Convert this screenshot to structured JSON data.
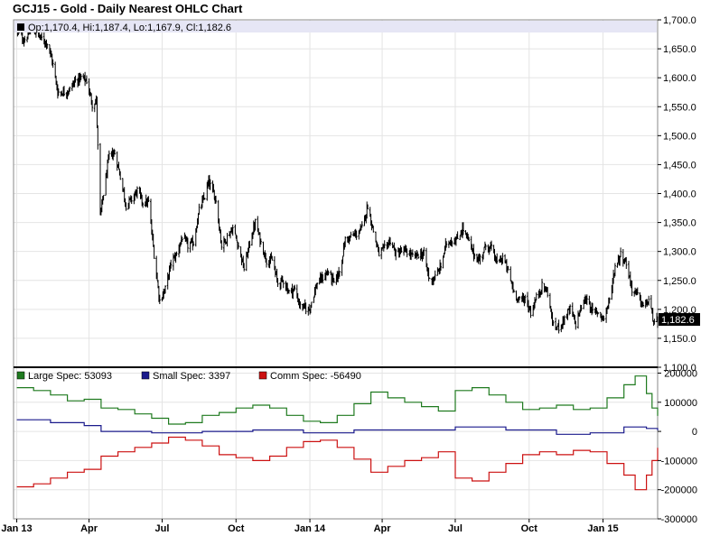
{
  "title": "GCJ15 - Gold - Daily Nearest OHLC Chart",
  "chart_data": [
    {
      "type": "ohlc",
      "ohlc_legend": "Op:1,170.4, Hi:1,187.4, Lo:1,167.9, Cl:1,182.6",
      "last_value_label": "1,182.6",
      "last_value": 1182.6,
      "ylim": [
        1100,
        1700
      ],
      "y_ticks": [
        "1,100.0",
        "1,150.0",
        "1,200.0",
        "1,250.0",
        "1,300.0",
        "1,350.0",
        "1,400.0",
        "1,450.0",
        "1,500.0",
        "1,550.0",
        "1,600.0",
        "1,650.0",
        "1,700.0"
      ],
      "y_tick_values": [
        1100,
        1150,
        1200,
        1250,
        1300,
        1350,
        1400,
        1450,
        1500,
        1550,
        1600,
        1650,
        1700
      ],
      "x_tick_dates": [
        "2013-01-01",
        "2013-04-01",
        "2013-07-01",
        "2013-10-01",
        "2014-01-01",
        "2014-04-01",
        "2014-07-01",
        "2014-10-01",
        "2015-01-01"
      ],
      "x_range": [
        "2012-12-28",
        "2015-03-10"
      ],
      "grid": true,
      "close_series": [
        [
          "2013-01-02",
          1680
        ],
        [
          "2013-01-10",
          1665
        ],
        [
          "2013-01-20",
          1685
        ],
        [
          "2013-01-30",
          1670
        ],
        [
          "2013-02-08",
          1660
        ],
        [
          "2013-02-14",
          1630
        ],
        [
          "2013-02-21",
          1575
        ],
        [
          "2013-03-01",
          1575
        ],
        [
          "2013-03-08",
          1580
        ],
        [
          "2013-03-15",
          1595
        ],
        [
          "2013-03-22",
          1600
        ],
        [
          "2013-03-29",
          1595
        ],
        [
          "2013-04-05",
          1555
        ],
        [
          "2013-04-10",
          1560
        ],
        [
          "2013-04-12",
          1480
        ],
        [
          "2013-04-15",
          1360
        ],
        [
          "2013-04-19",
          1400
        ],
        [
          "2013-04-26",
          1465
        ],
        [
          "2013-05-03",
          1470
        ],
        [
          "2013-05-10",
          1430
        ],
        [
          "2013-05-17",
          1380
        ],
        [
          "2013-05-24",
          1390
        ],
        [
          "2013-05-31",
          1405
        ],
        [
          "2013-06-07",
          1385
        ],
        [
          "2013-06-14",
          1385
        ],
        [
          "2013-06-21",
          1295
        ],
        [
          "2013-06-28",
          1215
        ],
        [
          "2013-07-05",
          1235
        ],
        [
          "2013-07-12",
          1280
        ],
        [
          "2013-07-19",
          1295
        ],
        [
          "2013-07-26",
          1325
        ],
        [
          "2013-08-02",
          1310
        ],
        [
          "2013-08-09",
          1315
        ],
        [
          "2013-08-16",
          1370
        ],
        [
          "2013-08-23",
          1395
        ],
        [
          "2013-08-28",
          1420
        ],
        [
          "2013-09-06",
          1390
        ],
        [
          "2013-09-13",
          1310
        ],
        [
          "2013-09-20",
          1325
        ],
        [
          "2013-09-27",
          1340
        ],
        [
          "2013-10-04",
          1310
        ],
        [
          "2013-10-11",
          1270
        ],
        [
          "2013-10-18",
          1315
        ],
        [
          "2013-10-25",
          1350
        ],
        [
          "2013-11-01",
          1315
        ],
        [
          "2013-11-08",
          1285
        ],
        [
          "2013-11-15",
          1285
        ],
        [
          "2013-11-22",
          1245
        ],
        [
          "2013-11-29",
          1250
        ],
        [
          "2013-12-06",
          1230
        ],
        [
          "2013-12-13",
          1235
        ],
        [
          "2013-12-20",
          1205
        ],
        [
          "2013-12-31",
          1200
        ],
        [
          "2014-01-10",
          1245
        ],
        [
          "2014-01-17",
          1255
        ],
        [
          "2014-01-24",
          1265
        ],
        [
          "2014-01-31",
          1245
        ],
        [
          "2014-02-07",
          1265
        ],
        [
          "2014-02-14",
          1320
        ],
        [
          "2014-02-21",
          1325
        ],
        [
          "2014-02-28",
          1330
        ],
        [
          "2014-03-07",
          1340
        ],
        [
          "2014-03-14",
          1380
        ],
        [
          "2014-03-21",
          1335
        ],
        [
          "2014-03-28",
          1295
        ],
        [
          "2014-04-04",
          1305
        ],
        [
          "2014-04-11",
          1320
        ],
        [
          "2014-04-18",
          1295
        ],
        [
          "2014-04-25",
          1300
        ],
        [
          "2014-05-02",
          1300
        ],
        [
          "2014-05-09",
          1290
        ],
        [
          "2014-05-16",
          1295
        ],
        [
          "2014-05-23",
          1295
        ],
        [
          "2014-05-30",
          1250
        ],
        [
          "2014-06-06",
          1255
        ],
        [
          "2014-06-13",
          1275
        ],
        [
          "2014-06-20",
          1315
        ],
        [
          "2014-06-27",
          1320
        ],
        [
          "2014-07-03",
          1320
        ],
        [
          "2014-07-10",
          1340
        ],
        [
          "2014-07-17",
          1320
        ],
        [
          "2014-07-24",
          1295
        ],
        [
          "2014-07-31",
          1285
        ],
        [
          "2014-08-08",
          1310
        ],
        [
          "2014-08-15",
          1305
        ],
        [
          "2014-08-22",
          1280
        ],
        [
          "2014-08-29",
          1290
        ],
        [
          "2014-09-05",
          1265
        ],
        [
          "2014-09-12",
          1230
        ],
        [
          "2014-09-19",
          1215
        ],
        [
          "2014-09-26",
          1220
        ],
        [
          "2014-10-03",
          1195
        ],
        [
          "2014-10-10",
          1220
        ],
        [
          "2014-10-17",
          1240
        ],
        [
          "2014-10-24",
          1230
        ],
        [
          "2014-10-31",
          1170
        ],
        [
          "2014-11-07",
          1170
        ],
        [
          "2014-11-14",
          1185
        ],
        [
          "2014-11-21",
          1200
        ],
        [
          "2014-11-28",
          1175
        ],
        [
          "2014-12-05",
          1205
        ],
        [
          "2014-12-12",
          1220
        ],
        [
          "2014-12-19",
          1195
        ],
        [
          "2014-12-26",
          1195
        ],
        [
          "2015-01-02",
          1185
        ],
        [
          "2015-01-09",
          1215
        ],
        [
          "2015-01-16",
          1275
        ],
        [
          "2015-01-23",
          1295
        ],
        [
          "2015-01-30",
          1280
        ],
        [
          "2015-02-06",
          1235
        ],
        [
          "2015-02-13",
          1225
        ],
        [
          "2015-02-20",
          1205
        ],
        [
          "2015-02-27",
          1215
        ],
        [
          "2015-03-06",
          1175
        ],
        [
          "2015-03-10",
          1182.6
        ]
      ]
    },
    {
      "type": "line",
      "ylim": [
        -300000,
        220000
      ],
      "y_ticks": [
        "-300000",
        "-200000",
        "-100000",
        "0",
        "100000",
        "200000"
      ],
      "y_tick_values": [
        -300000,
        -200000,
        -100000,
        0,
        100000,
        200000
      ],
      "x_tick_labels": [
        "Jan 13",
        "Apr",
        "Jul",
        "Oct",
        "Jan 14",
        "Apr",
        "Jul",
        "Oct",
        "Jan 15"
      ],
      "x_tick_dates": [
        "2013-01-01",
        "2013-04-01",
        "2013-07-01",
        "2013-10-01",
        "2014-01-01",
        "2014-04-01",
        "2014-07-01",
        "2014-10-01",
        "2015-01-01"
      ],
      "x_range": [
        "2012-12-28",
        "2015-03-10"
      ],
      "grid": true,
      "series": [
        {
          "name": "Large Spec: 53093",
          "color": "#1f7a1f",
          "points": [
            [
              "2013-01-01",
              150000
            ],
            [
              "2013-01-22",
              140000
            ],
            [
              "2013-02-12",
              125000
            ],
            [
              "2013-03-05",
              105000
            ],
            [
              "2013-03-26",
              110000
            ],
            [
              "2013-04-16",
              80000
            ],
            [
              "2013-05-07",
              75000
            ],
            [
              "2013-05-28",
              60000
            ],
            [
              "2013-06-18",
              45000
            ],
            [
              "2013-07-09",
              25000
            ],
            [
              "2013-07-30",
              30000
            ],
            [
              "2013-08-20",
              55000
            ],
            [
              "2013-09-10",
              65000
            ],
            [
              "2013-10-01",
              80000
            ],
            [
              "2013-10-22",
              90000
            ],
            [
              "2013-11-12",
              80000
            ],
            [
              "2013-12-03",
              55000
            ],
            [
              "2013-12-24",
              35000
            ],
            [
              "2014-01-14",
              30000
            ],
            [
              "2014-02-04",
              55000
            ],
            [
              "2014-02-25",
              95000
            ],
            [
              "2014-03-18",
              135000
            ],
            [
              "2014-04-08",
              115000
            ],
            [
              "2014-04-29",
              100000
            ],
            [
              "2014-05-20",
              85000
            ],
            [
              "2014-06-10",
              70000
            ],
            [
              "2014-07-01",
              140000
            ],
            [
              "2014-07-22",
              150000
            ],
            [
              "2014-08-12",
              125000
            ],
            [
              "2014-09-02",
              100000
            ],
            [
              "2014-09-23",
              75000
            ],
            [
              "2014-10-14",
              80000
            ],
            [
              "2014-11-04",
              90000
            ],
            [
              "2014-11-25",
              75000
            ],
            [
              "2014-12-16",
              80000
            ],
            [
              "2015-01-06",
              115000
            ],
            [
              "2015-01-27",
              160000
            ],
            [
              "2015-02-10",
              190000
            ],
            [
              "2015-02-24",
              130000
            ],
            [
              "2015-03-03",
              80000
            ],
            [
              "2015-03-10",
              53093
            ]
          ]
        },
        {
          "name": "Small Spec: 3397",
          "color": "#1a1a8c",
          "points": [
            [
              "2013-01-01",
              40000
            ],
            [
              "2013-02-12",
              30000
            ],
            [
              "2013-03-26",
              20000
            ],
            [
              "2013-04-16",
              0
            ],
            [
              "2013-06-18",
              -5000
            ],
            [
              "2013-08-20",
              0
            ],
            [
              "2013-10-22",
              5000
            ],
            [
              "2013-12-24",
              -5000
            ],
            [
              "2014-02-25",
              5000
            ],
            [
              "2014-04-29",
              5000
            ],
            [
              "2014-07-01",
              15000
            ],
            [
              "2014-09-02",
              5000
            ],
            [
              "2014-11-04",
              -10000
            ],
            [
              "2014-12-16",
              -5000
            ],
            [
              "2015-01-27",
              15000
            ],
            [
              "2015-02-24",
              10000
            ],
            [
              "2015-03-10",
              3397
            ]
          ]
        },
        {
          "name": "Comm Spec: -56490",
          "color": "#cc1111",
          "points": [
            [
              "2013-01-01",
              -190000
            ],
            [
              "2013-01-22",
              -180000
            ],
            [
              "2013-02-12",
              -160000
            ],
            [
              "2013-03-05",
              -140000
            ],
            [
              "2013-03-26",
              -130000
            ],
            [
              "2013-04-16",
              -85000
            ],
            [
              "2013-05-07",
              -70000
            ],
            [
              "2013-05-28",
              -55000
            ],
            [
              "2013-06-18",
              -40000
            ],
            [
              "2013-07-09",
              -20000
            ],
            [
              "2013-07-30",
              -30000
            ],
            [
              "2013-08-20",
              -50000
            ],
            [
              "2013-09-10",
              -80000
            ],
            [
              "2013-10-01",
              -90000
            ],
            [
              "2013-10-22",
              -100000
            ],
            [
              "2013-11-12",
              -85000
            ],
            [
              "2013-12-03",
              -55000
            ],
            [
              "2013-12-24",
              -35000
            ],
            [
              "2014-01-14",
              -30000
            ],
            [
              "2014-02-04",
              -55000
            ],
            [
              "2014-02-25",
              -95000
            ],
            [
              "2014-03-18",
              -140000
            ],
            [
              "2014-04-08",
              -120000
            ],
            [
              "2014-04-29",
              -100000
            ],
            [
              "2014-05-20",
              -90000
            ],
            [
              "2014-06-10",
              -70000
            ],
            [
              "2014-07-01",
              -160000
            ],
            [
              "2014-07-22",
              -170000
            ],
            [
              "2014-08-12",
              -140000
            ],
            [
              "2014-09-02",
              -110000
            ],
            [
              "2014-09-23",
              -80000
            ],
            [
              "2014-10-14",
              -70000
            ],
            [
              "2014-11-04",
              -80000
            ],
            [
              "2014-11-25",
              -65000
            ],
            [
              "2014-12-16",
              -70000
            ],
            [
              "2015-01-06",
              -110000
            ],
            [
              "2015-01-27",
              -150000
            ],
            [
              "2015-02-10",
              -200000
            ],
            [
              "2015-02-24",
              -150000
            ],
            [
              "2015-03-03",
              -100000
            ],
            [
              "2015-03-10",
              -56490
            ]
          ]
        }
      ]
    }
  ]
}
